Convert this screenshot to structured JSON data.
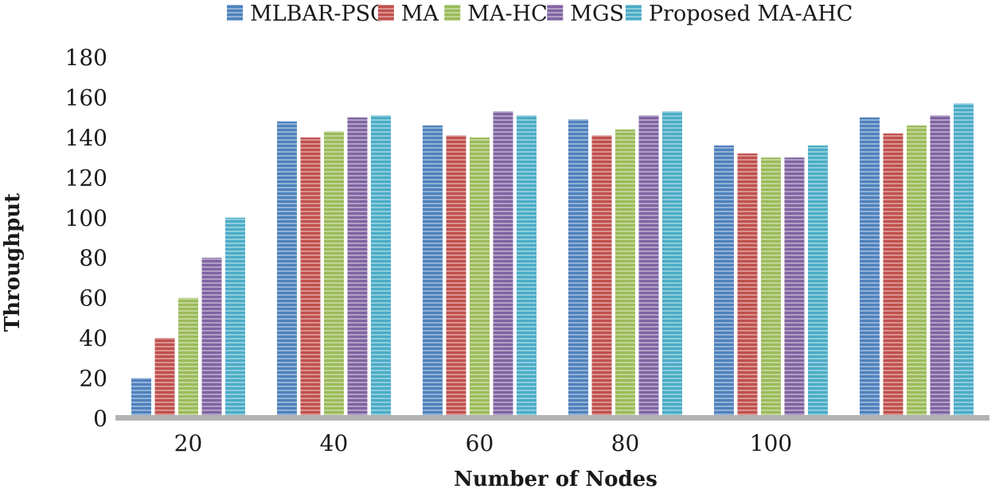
{
  "chart_data": {
    "type": "bar",
    "title": "",
    "xlabel": "Number of Nodes",
    "ylabel": "Throughput",
    "categories": [
      "20",
      "40",
      "60",
      "80",
      "100",
      ""
    ],
    "ylim": [
      0,
      180
    ],
    "yticks": [
      0,
      20,
      40,
      60,
      80,
      100,
      120,
      140,
      160,
      180
    ],
    "grid": false,
    "legend_position": "top",
    "series": [
      {
        "name": "MLBAR-PSO",
        "color": "#4f81bd",
        "values": [
          20,
          148,
          146,
          149,
          136,
          150
        ]
      },
      {
        "name": "MA",
        "color": "#c0504d",
        "values": [
          40,
          140,
          141,
          141,
          132,
          142
        ]
      },
      {
        "name": "MA-HC",
        "color": "#9bbb59",
        "values": [
          60,
          143,
          140,
          144,
          130,
          146
        ]
      },
      {
        "name": "MGS",
        "color": "#8064a2",
        "values": [
          80,
          150,
          153,
          151,
          130,
          151
        ]
      },
      {
        "name": "Proposed MA-AHC",
        "color": "#4bacc6",
        "values": [
          100,
          151,
          151,
          153,
          136,
          157
        ]
      }
    ]
  }
}
